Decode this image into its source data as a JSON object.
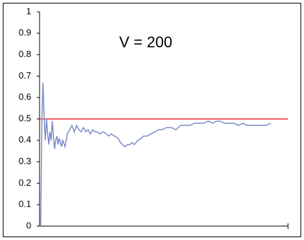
{
  "chart_data": {
    "type": "line",
    "annotation": "V = 200",
    "x": [
      1,
      2,
      3,
      4,
      5,
      6,
      7,
      8,
      9,
      10,
      11,
      12,
      13,
      14,
      15,
      16,
      17,
      18,
      19,
      20,
      22,
      24,
      26,
      28,
      30,
      32,
      34,
      36,
      38,
      40,
      42,
      44,
      46,
      48,
      50,
      52,
      55,
      58,
      60,
      62,
      65,
      68,
      70,
      72,
      74,
      76,
      78,
      80,
      82,
      85,
      88,
      90,
      93,
      96,
      100,
      103,
      106,
      110,
      114,
      118,
      122,
      126,
      130,
      134,
      138,
      142,
      146,
      150,
      153,
      156,
      160,
      164,
      168,
      172,
      176,
      180,
      184,
      188,
      192,
      196,
      200
    ],
    "series": [
      {
        "color": "#7b8cc6",
        "values": [
          0,
          0.5,
          0.67,
          0.5,
          0.4,
          0.5,
          0.43,
          0.38,
          0.44,
          0.4,
          0.49,
          0.42,
          0.36,
          0.4,
          0.42,
          0.38,
          0.41,
          0.39,
          0.37,
          0.4,
          0.37,
          0.43,
          0.45,
          0.47,
          0.44,
          0.47,
          0.45,
          0.44,
          0.46,
          0.44,
          0.45,
          0.43,
          0.45,
          0.44,
          0.44,
          0.43,
          0.44,
          0.43,
          0.42,
          0.43,
          0.42,
          0.41,
          0.39,
          0.38,
          0.37,
          0.38,
          0.38,
          0.39,
          0.38,
          0.4,
          0.41,
          0.42,
          0.42,
          0.43,
          0.44,
          0.45,
          0.45,
          0.46,
          0.46,
          0.45,
          0.47,
          0.47,
          0.47,
          0.48,
          0.48,
          0.48,
          0.49,
          0.48,
          0.49,
          0.49,
          0.48,
          0.48,
          0.48,
          0.47,
          0.48,
          0.47,
          0.47,
          0.47,
          0.47,
          0.47,
          0.48
        ]
      }
    ],
    "reference_line": {
      "value": 0.5,
      "color": "#ff0000"
    },
    "xlim": [
      0,
      215
    ],
    "xticks": [
      215
    ],
    "ylim": [
      0,
      1
    ],
    "yticks": [
      0,
      0.1,
      0.2,
      0.3,
      0.4,
      0.5,
      0.6,
      0.7,
      0.8,
      0.9,
      1
    ]
  }
}
